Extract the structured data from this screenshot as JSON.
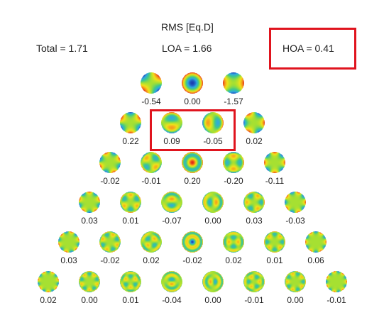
{
  "header": {
    "title": "RMS [Eq.D]",
    "total": "Total = 1.71",
    "loa": "LOA = 1.66",
    "hoa": "HOA = 0.41"
  },
  "colormap": [
    "#1a3fb0",
    "#2fa8e6",
    "#3ec98a",
    "#a6e032",
    "#f2e21a",
    "#f5941c",
    "#e02418"
  ],
  "rows": [
    {
      "order": 2,
      "modes": [
        {
          "m": -2,
          "value": "-0.54"
        },
        {
          "m": 0,
          "value": "0.00"
        },
        {
          "m": 2,
          "value": "-1.57"
        }
      ]
    },
    {
      "order": 3,
      "modes": [
        {
          "m": -3,
          "value": "0.22"
        },
        {
          "m": -1,
          "value": "0.09"
        },
        {
          "m": 1,
          "value": "-0.05"
        },
        {
          "m": 3,
          "value": "0.02"
        }
      ]
    },
    {
      "order": 4,
      "modes": [
        {
          "m": -4,
          "value": "-0.02"
        },
        {
          "m": -2,
          "value": "-0.01"
        },
        {
          "m": 0,
          "value": "0.20"
        },
        {
          "m": 2,
          "value": "-0.20"
        },
        {
          "m": 4,
          "value": "-0.11"
        }
      ]
    },
    {
      "order": 5,
      "modes": [
        {
          "m": -5,
          "value": "0.03"
        },
        {
          "m": -3,
          "value": "0.01"
        },
        {
          "m": -1,
          "value": "-0.07"
        },
        {
          "m": 1,
          "value": "0.00"
        },
        {
          "m": 3,
          "value": "0.03"
        },
        {
          "m": 5,
          "value": "-0.03"
        }
      ]
    },
    {
      "order": 6,
      "modes": [
        {
          "m": -6,
          "value": "0.03"
        },
        {
          "m": -4,
          "value": "-0.02"
        },
        {
          "m": -2,
          "value": "0.02"
        },
        {
          "m": 0,
          "value": "-0.02"
        },
        {
          "m": 2,
          "value": "0.02"
        },
        {
          "m": 4,
          "value": "0.01"
        },
        {
          "m": 6,
          "value": "0.06"
        }
      ]
    },
    {
      "order": 7,
      "modes": [
        {
          "m": -7,
          "value": "0.02"
        },
        {
          "m": -5,
          "value": "0.00"
        },
        {
          "m": -3,
          "value": "0.01"
        },
        {
          "m": -1,
          "value": "-0.04"
        },
        {
          "m": 1,
          "value": "0.00"
        },
        {
          "m": 3,
          "value": "-0.01"
        },
        {
          "m": 5,
          "value": "0.00"
        },
        {
          "m": 7,
          "value": "-0.01"
        }
      ]
    }
  ],
  "highlights": [
    "HOA = 0.41",
    "coma pair (0.09, -0.05)"
  ]
}
